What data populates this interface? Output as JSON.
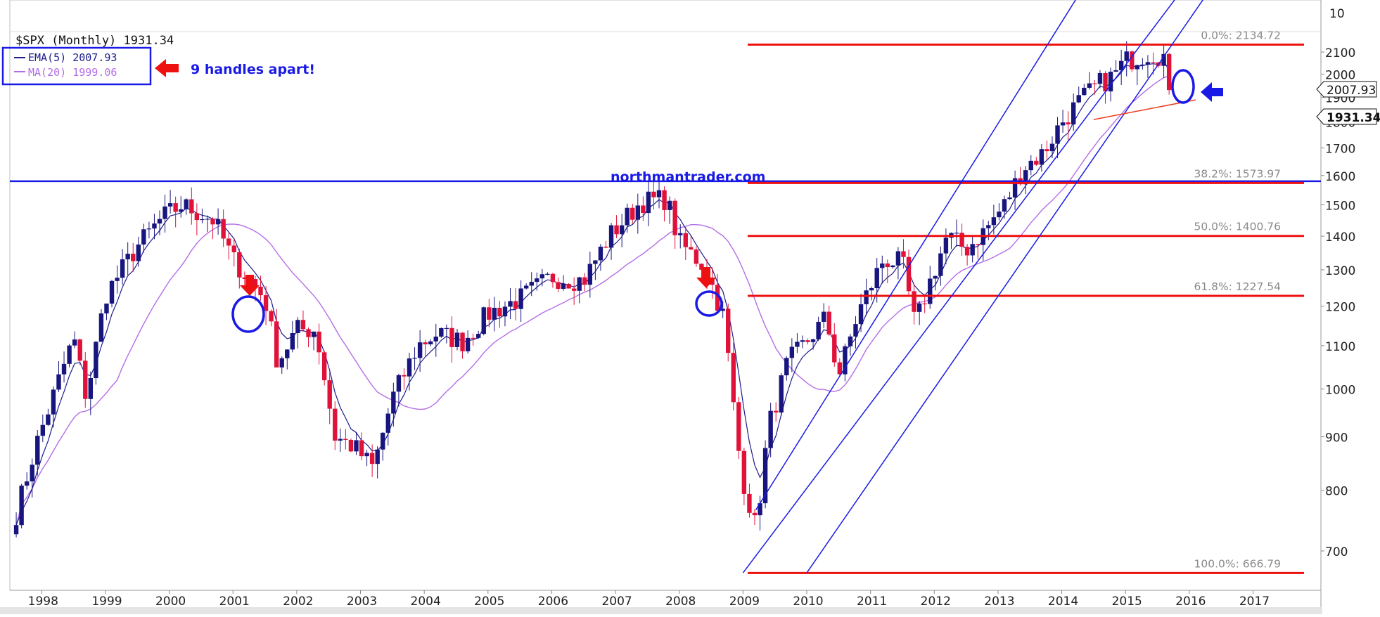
{
  "chart_data": {
    "type": "candlestick",
    "title": "$SPX (Monthly)",
    "last_price": "1931.34",
    "legend": {
      "ema_label": "EMA(5)",
      "ema_value": "2007.93",
      "ma_label": "MA(20)",
      "ma_value": "1999.06"
    },
    "annotation_text": "9 handles apart!",
    "watermark": "northmantrader.com",
    "x_axis": {
      "range": [
        1997.5,
        2017.8
      ],
      "ticks": [
        "1998",
        "1999",
        "2000",
        "2001",
        "2002",
        "2003",
        "2004",
        "2005",
        "2006",
        "2007",
        "2008",
        "2009",
        "2010",
        "2011",
        "2012",
        "2013",
        "2014",
        "2015",
        "2016",
        "2017"
      ]
    },
    "y_axis": {
      "scale": "log",
      "range": [
        660,
        2200
      ],
      "ticks": [
        "700",
        "800",
        "900",
        "1000",
        "1100",
        "1200",
        "1300",
        "1400",
        "1500",
        "1600",
        "1700",
        "1800",
        "1900",
        "2000",
        "2100"
      ],
      "top_label": "10"
    },
    "price_tags": [
      "2007.93",
      "1931.34"
    ],
    "fib_levels": [
      {
        "label": "0.0%: 2134.72",
        "value": 2134.72
      },
      {
        "label": "38.2%: 1573.97",
        "value": 1573.97
      },
      {
        "label": "50.0%: 1400.76",
        "value": 1400.76
      },
      {
        "label": "61.8%: 1227.54",
        "value": 1227.54
      },
      {
        "label": "100.0%: 666.79",
        "value": 666.79
      }
    ],
    "horizontal_resistance": 1580,
    "channel_lines": [
      {
        "p1": [
          2009.0,
          667
        ],
        "p2": [
          2016.3,
          2600
        ]
      },
      {
        "p1": [
          2010.0,
          667
        ],
        "p2": [
          2016.7,
          2600
        ]
      },
      {
        "p1": [
          2009.2,
          766
        ],
        "p2": [
          2014.3,
          2400
        ]
      }
    ],
    "support_line": {
      "p1": [
        2014.5,
        1810
      ],
      "p2": [
        2016.1,
        1890
      ]
    },
    "key_points": [
      [
        1997.6,
        760
      ],
      [
        1997.9,
        880
      ],
      [
        1998.5,
        1120
      ],
      [
        1998.7,
        980
      ],
      [
        1999.0,
        1230
      ],
      [
        1999.5,
        1370
      ],
      [
        1999.9,
        1460
      ],
      [
        2000.2,
        1500
      ],
      [
        2000.7,
        1450
      ],
      [
        2001.0,
        1330
      ],
      [
        2001.5,
        1220
      ],
      [
        2001.7,
        1060
      ],
      [
        2002.0,
        1140
      ],
      [
        2002.3,
        1140
      ],
      [
        2002.6,
        900
      ],
      [
        2002.9,
        880
      ],
      [
        2003.2,
        840
      ],
      [
        2003.5,
        980
      ],
      [
        2003.9,
        1100
      ],
      [
        2004.2,
        1130
      ],
      [
        2004.6,
        1110
      ],
      [
        2005.0,
        1180
      ],
      [
        2005.5,
        1220
      ],
      [
        2006.0,
        1280
      ],
      [
        2006.5,
        1270
      ],
      [
        2006.9,
        1400
      ],
      [
        2007.4,
        1510
      ],
      [
        2007.8,
        1520
      ],
      [
        2008.0,
        1380
      ],
      [
        2008.4,
        1310
      ],
      [
        2008.7,
        1170
      ],
      [
        2008.9,
        900
      ],
      [
        2009.0,
        820
      ],
      [
        2009.2,
        735
      ],
      [
        2009.4,
        920
      ],
      [
        2009.7,
        1060
      ],
      [
        2010.0,
        1110
      ],
      [
        2010.3,
        1170
      ],
      [
        2010.5,
        1030
      ],
      [
        2010.8,
        1180
      ],
      [
        2011.2,
        1330
      ],
      [
        2011.5,
        1320
      ],
      [
        2011.7,
        1150
      ],
      [
        2011.9,
        1250
      ],
      [
        2012.2,
        1400
      ],
      [
        2012.5,
        1360
      ],
      [
        2012.8,
        1420
      ],
      [
        2013.1,
        1500
      ],
      [
        2013.4,
        1630
      ],
      [
        2013.7,
        1680
      ],
      [
        2014.0,
        1800
      ],
      [
        2014.3,
        1890
      ],
      [
        2014.6,
        1960
      ],
      [
        2014.8,
        1990
      ],
      [
        2015.0,
        2060
      ],
      [
        2015.4,
        2100
      ],
      [
        2015.6,
        2080
      ],
      [
        2015.7,
        1920
      ],
      [
        2015.75,
        1931
      ]
    ]
  }
}
